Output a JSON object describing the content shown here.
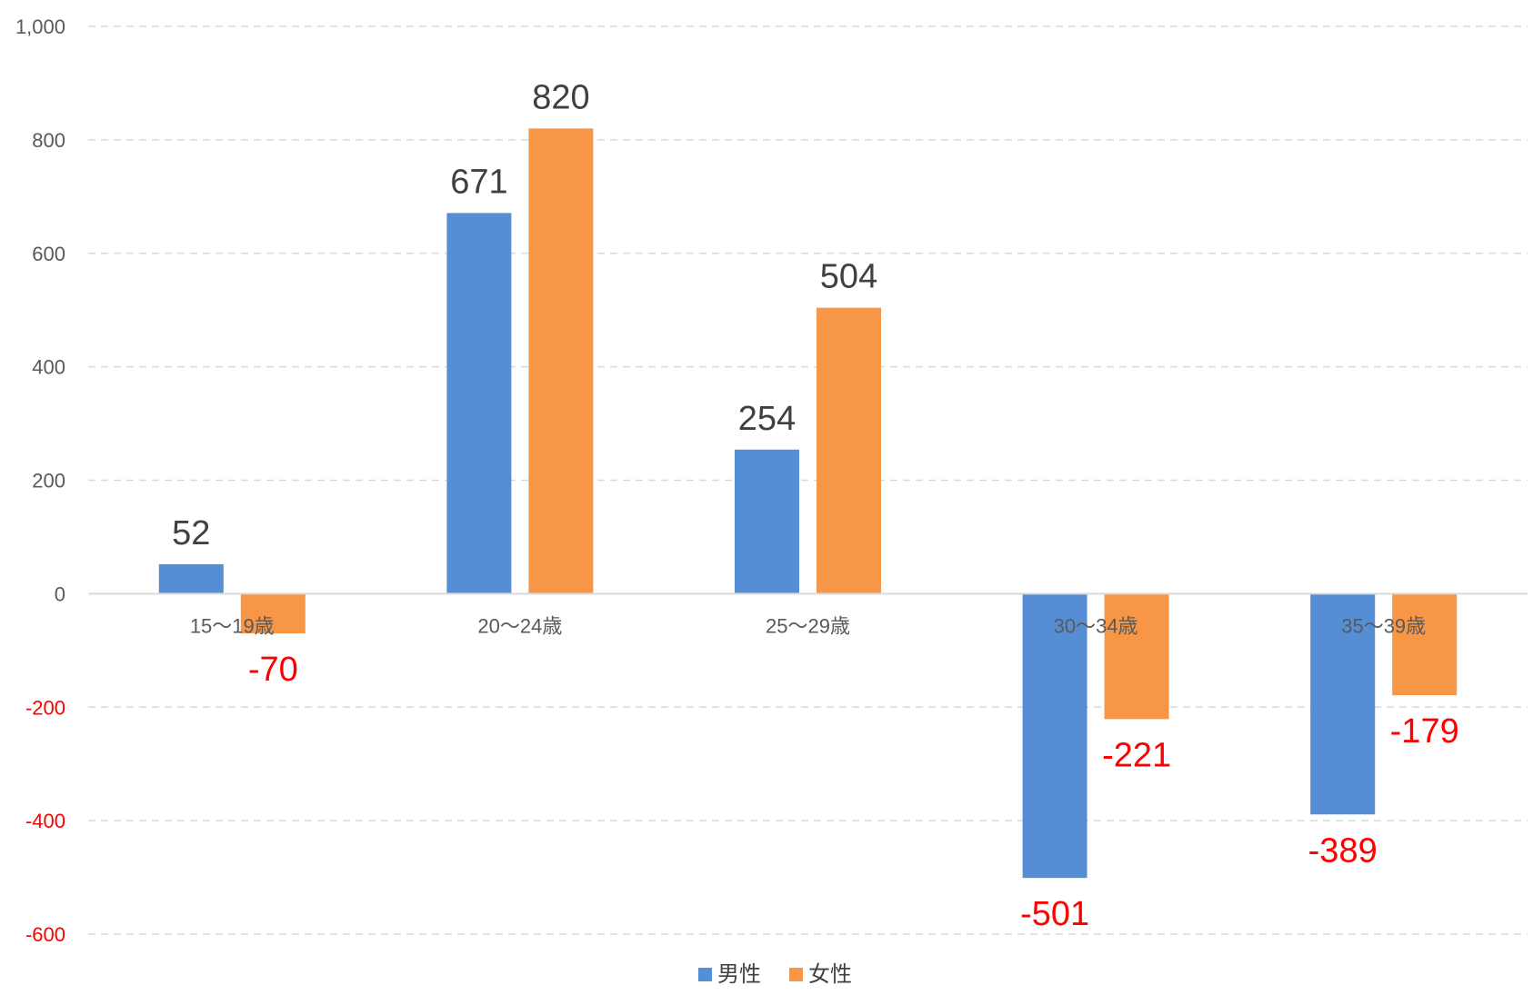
{
  "chart_data": {
    "type": "bar",
    "categories": [
      "15～19歳",
      "20～24歳",
      "25～29歳",
      "30～34歳",
      "35～39歳"
    ],
    "series": [
      {
        "name": "男性",
        "values": [
          52,
          671,
          254,
          -501,
          -389
        ],
        "color": "#558ED5"
      },
      {
        "name": "女性",
        "values": [
          -70,
          820,
          504,
          -221,
          -179
        ],
        "color": "#F79646"
      }
    ],
    "ylim": [
      -600,
      1000
    ],
    "yticks": [
      -600,
      -400,
      -200,
      0,
      200,
      400,
      600,
      800,
      1000
    ],
    "ytick_labels": [
      "-600",
      "-400",
      "-200",
      "0",
      "200",
      "400",
      "600",
      "800",
      "1,000"
    ],
    "grid": true,
    "legend": "bottom",
    "colors": {
      "positive_label": "#404040",
      "negative_label": "#FF0000",
      "positive_tick": "#595959",
      "negative_tick": "#FF0000",
      "grid": "#D9D9D9",
      "zero_line": "#D9D9D9"
    }
  }
}
